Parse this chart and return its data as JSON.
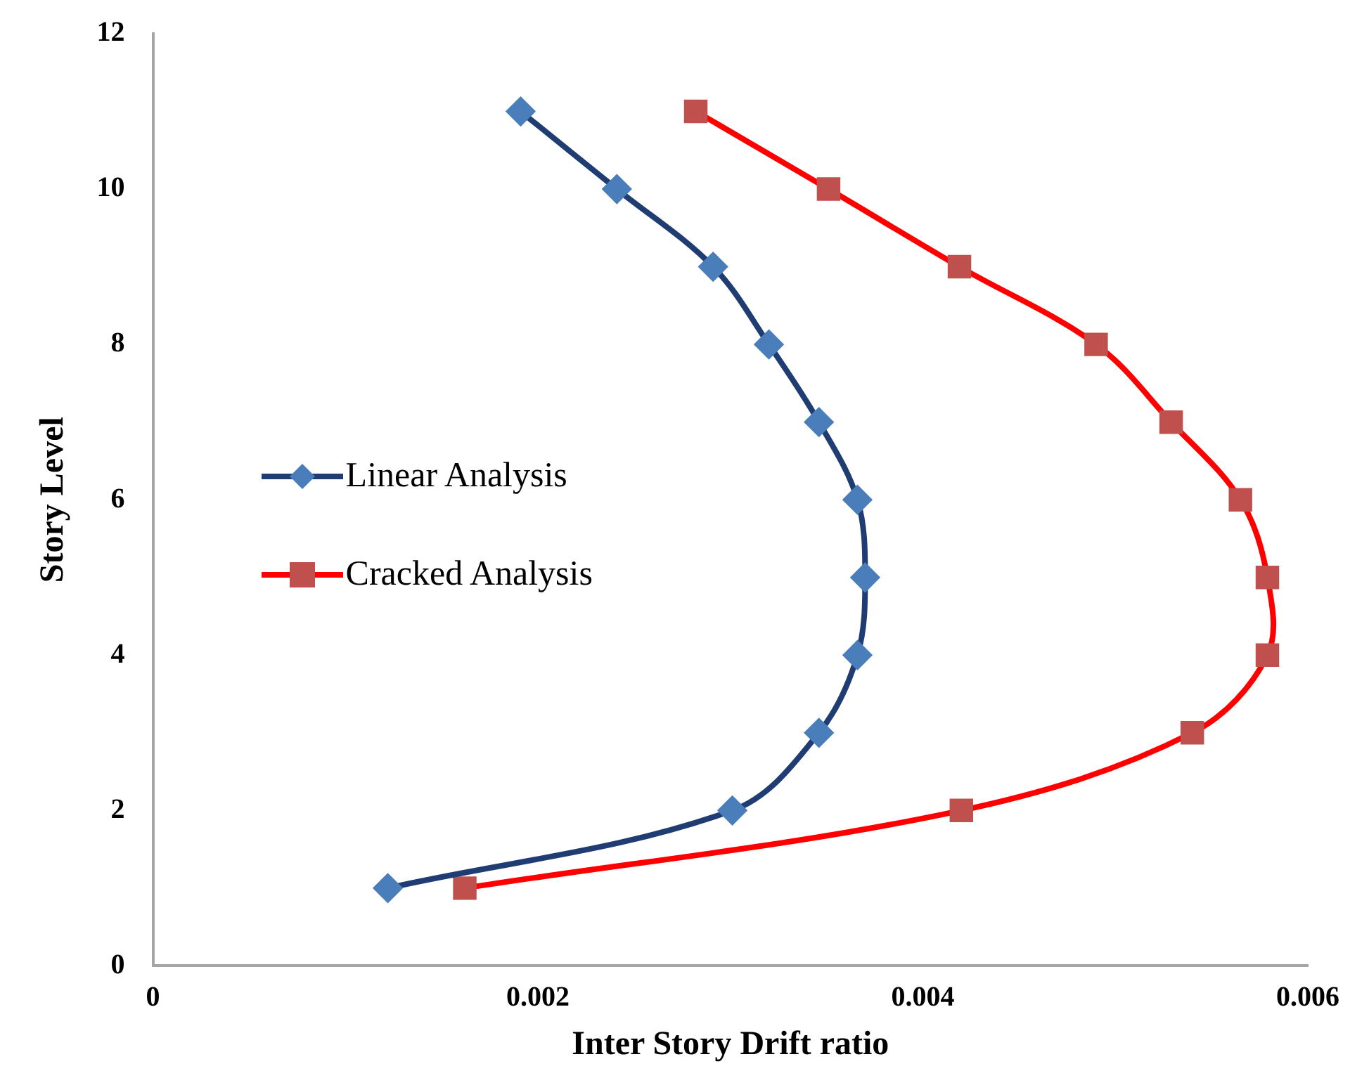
{
  "chart_data": {
    "type": "line",
    "xlabel": "Inter Story Drift ratio",
    "ylabel": "Story Level",
    "xlim": [
      0,
      0.006
    ],
    "xticks": [
      0,
      0.002,
      0.004,
      0.006
    ],
    "ylim": [
      0,
      12
    ],
    "yticks": [
      0,
      2,
      4,
      6,
      8,
      10,
      12
    ],
    "grid": false,
    "legend": "left",
    "series": [
      {
        "name": "Linear Analysis",
        "color": "#1f3d73",
        "colors": [
          "#4a7ebb",
          "#4a7ebb",
          "#4a7ebb",
          "#4a7ebb",
          "#4a7ebb",
          "#4a7ebb",
          "#4a7ebb",
          "#4a7ebb",
          "#4a7ebb",
          "#4a7ebb",
          "#4a7ebb"
        ],
        "marker": "diamond",
        "x": [
          0.00122,
          0.00301,
          0.00346,
          0.00366,
          0.0037,
          0.00366,
          0.00346,
          0.0032,
          0.00291,
          0.00241,
          0.00191
        ],
        "values": [
          1,
          2,
          3,
          4,
          5,
          6,
          7,
          8,
          9,
          10,
          11
        ]
      },
      {
        "name": "Cracked Analysis",
        "color": "#ff0000",
        "colors": [
          "#c0504d",
          "#c0504d",
          "#c0504d",
          "#c0504d",
          "#c0504d",
          "#c0504d",
          "#c0504d",
          "#c0504d",
          "#c0504d",
          "#c0504d",
          "#c0504d"
        ],
        "marker": "square",
        "x": [
          0.00162,
          0.0042,
          0.0054,
          0.00579,
          0.00579,
          0.00565,
          0.00529,
          0.0049,
          0.00419,
          0.00351,
          0.00282
        ],
        "values": [
          1,
          2,
          3,
          4,
          5,
          6,
          7,
          8,
          9,
          10,
          11
        ]
      }
    ]
  }
}
